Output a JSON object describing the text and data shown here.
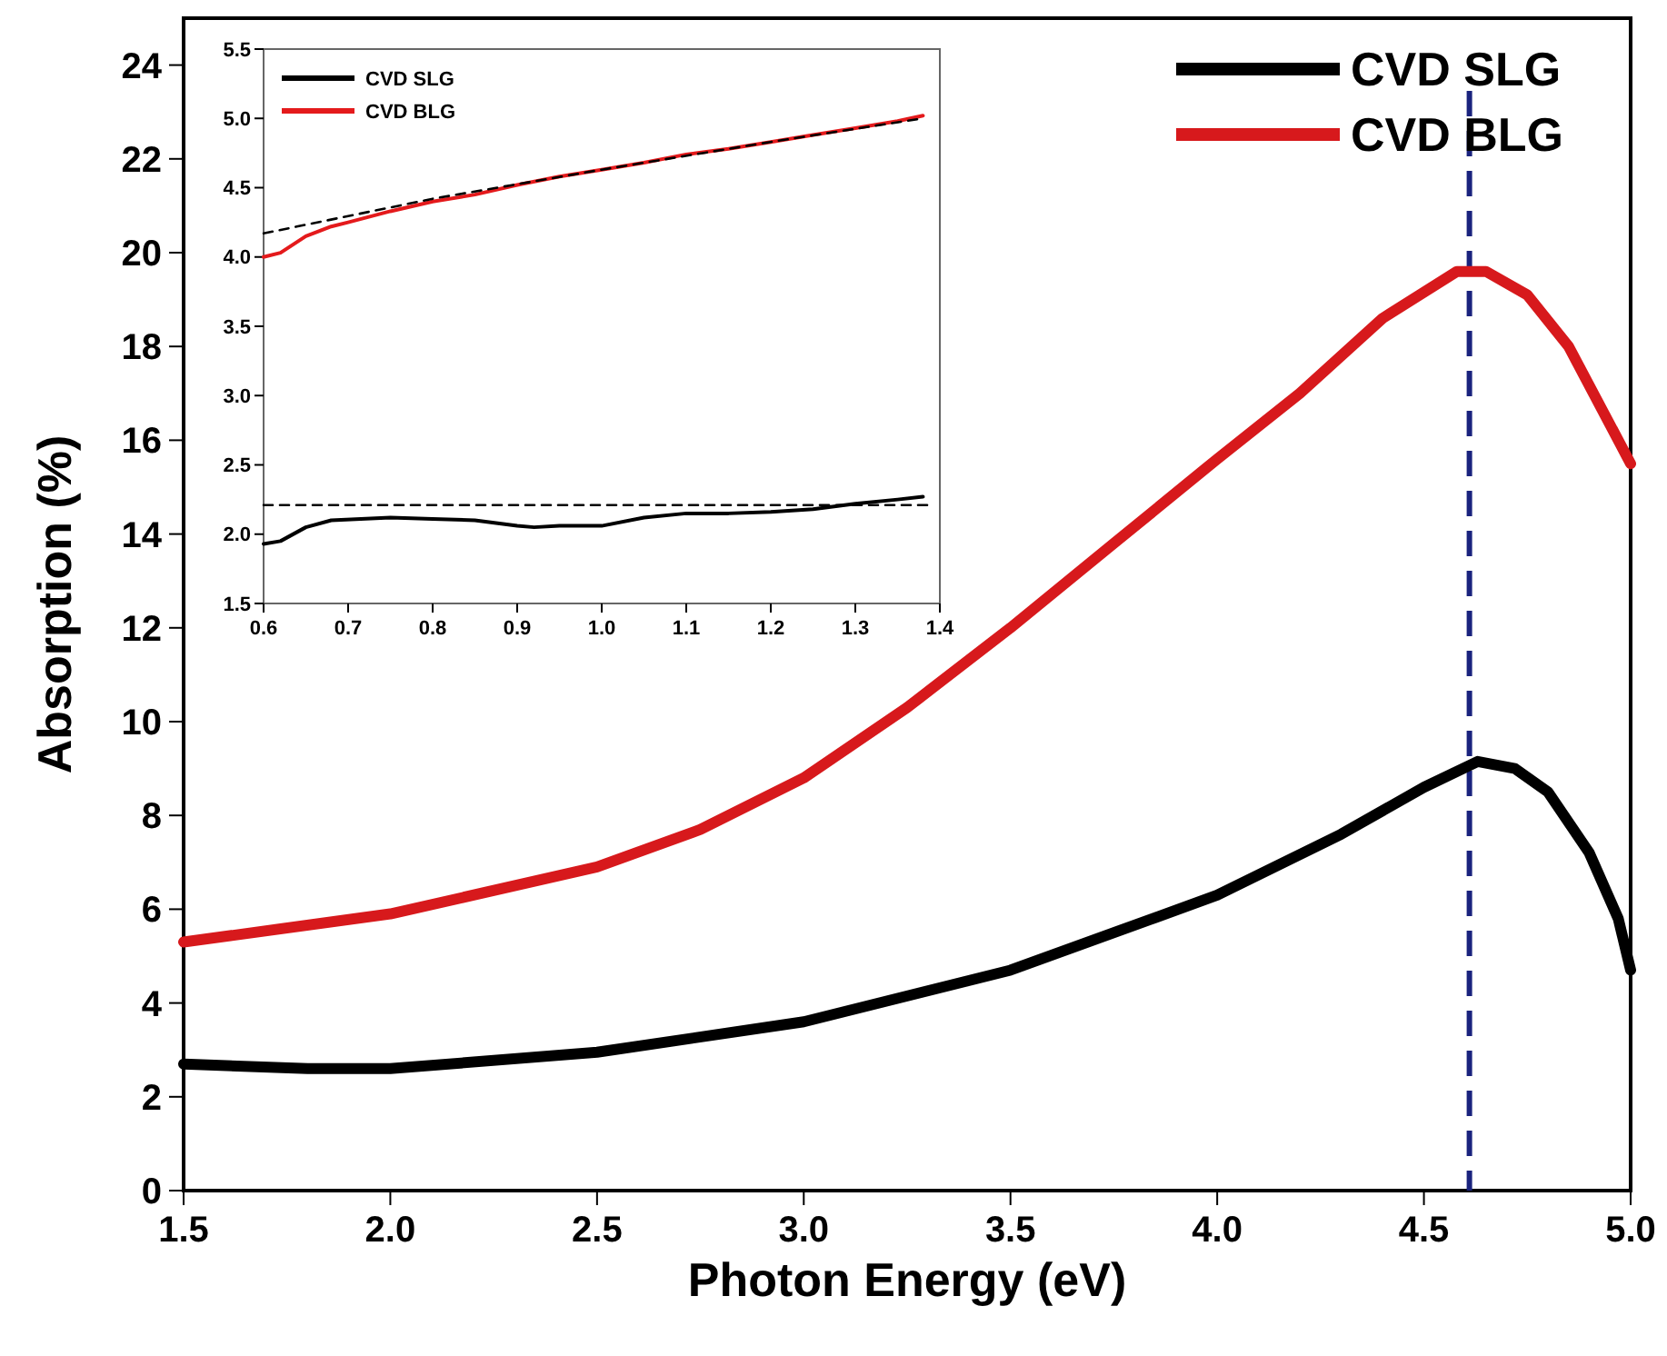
{
  "chart_data": [
    {
      "type": "line",
      "xlabel": "Photon Energy (eV)",
      "ylabel": "Absorption (%)",
      "xlim": [
        1.5,
        5.0
      ],
      "xticks": [
        1.5,
        {
          "value": 2,
          "label": "2.0"
        },
        2.5,
        {
          "value": 3,
          "label": "3.0"
        },
        3.5,
        {
          "value": 4,
          "label": "4.0"
        },
        4.5,
        {
          "value": 5,
          "label": "5.0"
        }
      ],
      "ylim": [
        0,
        25
      ],
      "yticks": [
        0,
        2,
        4,
        6,
        8,
        10,
        12,
        14,
        16,
        18,
        20,
        22,
        24
      ],
      "legend": "top right",
      "grid": false,
      "series": [
        {
          "name": "CVD SLG",
          "color": "#000000",
          "x": [
            1.5,
            1.8,
            2.0,
            2.5,
            3.0,
            3.5,
            4.0,
            4.3,
            4.5,
            4.63,
            4.72,
            4.8,
            4.9,
            4.97,
            5.0
          ],
          "values": [
            2.7,
            2.6,
            2.6,
            2.95,
            3.6,
            4.7,
            6.3,
            7.6,
            8.6,
            9.15,
            9.0,
            8.5,
            7.2,
            5.8,
            4.7
          ]
        },
        {
          "name": "CVD BLG",
          "color": "#d7191c",
          "x": [
            1.5,
            2.0,
            2.5,
            2.75,
            3.0,
            3.25,
            3.5,
            3.75,
            4.0,
            4.2,
            4.4,
            4.58,
            4.65,
            4.75,
            4.85,
            5.0
          ],
          "values": [
            5.3,
            5.9,
            6.9,
            7.7,
            8.8,
            10.3,
            12.0,
            13.8,
            15.6,
            17.0,
            18.6,
            19.6,
            19.6,
            19.1,
            18.0,
            15.5
          ]
        }
      ],
      "ref_lines": [
        {
          "axis": "x",
          "value": 4.61,
          "color": "#1a237e",
          "line_style": "dashed"
        }
      ]
    },
    {
      "type": "line",
      "xlim": [
        0.6,
        1.4
      ],
      "xticks": [
        0.6,
        0.7,
        0.8,
        0.9,
        {
          "value": 1,
          "label": "1.0"
        },
        1.1,
        1.2,
        1.3,
        1.4
      ],
      "ylim": [
        1.5,
        5.5
      ],
      "yticks": [
        1.5,
        {
          "value": 2,
          "label": "2.0"
        },
        2.5,
        {
          "value": 3,
          "label": "3.0"
        },
        3.5,
        {
          "value": 4,
          "label": "4.0"
        },
        4.5,
        {
          "value": 5,
          "label": "5.0"
        },
        5.5
      ],
      "legend": "top left",
      "grid": false,
      "series": [
        {
          "name": "CVD SLG",
          "color": "#000000",
          "x": [
            0.6,
            0.62,
            0.65,
            0.68,
            0.75,
            0.8,
            0.85,
            0.9,
            0.92,
            0.95,
            1.0,
            1.05,
            1.1,
            1.15,
            1.2,
            1.25,
            1.3,
            1.35,
            1.38
          ],
          "values": [
            1.93,
            1.95,
            2.05,
            2.1,
            2.12,
            2.11,
            2.1,
            2.06,
            2.05,
            2.06,
            2.06,
            2.12,
            2.15,
            2.15,
            2.16,
            2.18,
            2.22,
            2.25,
            2.27
          ]
        },
        {
          "name": "CVD BLG",
          "color": "#e41a1c",
          "x": [
            0.6,
            0.62,
            0.65,
            0.68,
            0.7,
            0.75,
            0.8,
            0.85,
            0.9,
            0.95,
            1.0,
            1.05,
            1.1,
            1.15,
            1.2,
            1.25,
            1.3,
            1.35,
            1.38
          ],
          "values": [
            4.0,
            4.03,
            4.15,
            4.22,
            4.25,
            4.33,
            4.4,
            4.45,
            4.52,
            4.58,
            4.63,
            4.68,
            4.74,
            4.78,
            4.83,
            4.88,
            4.93,
            4.98,
            5.02
          ]
        },
        {
          "type": "line",
          "color": "#000000",
          "line_style": "dashed",
          "x": [
            0.6,
            1.39
          ],
          "values": [
            2.21,
            2.21
          ]
        },
        {
          "type": "line",
          "color": "#000000",
          "line_style": "dashed",
          "x": [
            0.6,
            0.8,
            1.0,
            1.2,
            1.38
          ],
          "values": [
            4.17,
            4.42,
            4.63,
            4.83,
            5.0
          ]
        }
      ]
    }
  ]
}
